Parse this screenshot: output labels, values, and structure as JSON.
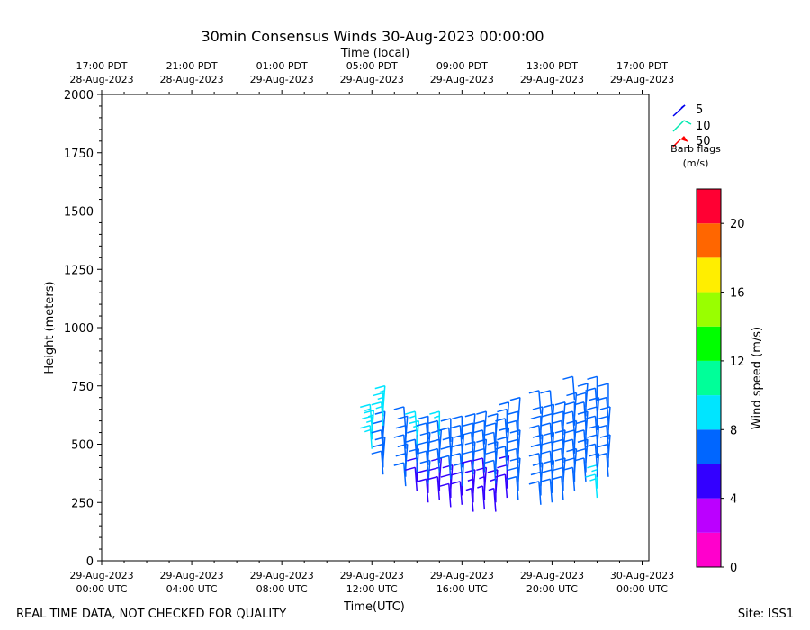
{
  "chart_data": {
    "type": "wind-barb",
    "title": "30min Consensus Winds 30-Aug-2023 00:00:00",
    "top_axis_label": "Time (local)",
    "xlabel": "Time(UTC)",
    "ylabel": "Height (meters)",
    "ylim": [
      0,
      2000
    ],
    "yticks": [
      0,
      250,
      500,
      750,
      1000,
      1250,
      1500,
      1750,
      2000
    ],
    "xlim_hours": [
      0,
      24.3
    ],
    "bottom_ticks": [
      {
        "hour": 0,
        "line1": "29-Aug-2023",
        "line2": "00:00 UTC"
      },
      {
        "hour": 4,
        "line1": "29-Aug-2023",
        "line2": "04:00 UTC"
      },
      {
        "hour": 8,
        "line1": "29-Aug-2023",
        "line2": "08:00 UTC"
      },
      {
        "hour": 12,
        "line1": "29-Aug-2023",
        "line2": "12:00 UTC"
      },
      {
        "hour": 16,
        "line1": "29-Aug-2023",
        "line2": "16:00 UTC"
      },
      {
        "hour": 20,
        "line1": "29-Aug-2023",
        "line2": "20:00 UTC"
      },
      {
        "hour": 24,
        "line1": "30-Aug-2023",
        "line2": "00:00 UTC"
      }
    ],
    "top_ticks": [
      {
        "hour": 0,
        "line1": "17:00 PDT",
        "line2": "28-Aug-2023"
      },
      {
        "hour": 4,
        "line1": "21:00 PDT",
        "line2": "28-Aug-2023"
      },
      {
        "hour": 8,
        "line1": "01:00 PDT",
        "line2": "29-Aug-2023"
      },
      {
        "hour": 12,
        "line1": "05:00 PDT",
        "line2": "29-Aug-2023"
      },
      {
        "hour": 16,
        "line1": "09:00 PDT",
        "line2": "29-Aug-2023"
      },
      {
        "hour": 20,
        "line1": "13:00 PDT",
        "line2": "29-Aug-2023"
      },
      {
        "hour": 24,
        "line1": "17:00 PDT",
        "line2": "29-Aug-2023"
      }
    ],
    "legend": {
      "items": [
        {
          "label": "5",
          "color": "#0000ee"
        },
        {
          "label": "10",
          "color": "#00e8b0"
        },
        {
          "label": "50",
          "color": "#ff0000"
        }
      ],
      "caption_line1": "Barb flags",
      "caption_line2": "(m/s)"
    },
    "colorbar": {
      "label": "Wind speed (m/s)",
      "range": [
        0,
        22
      ],
      "ticks": [
        0,
        4,
        8,
        12,
        16,
        20
      ],
      "bins": [
        {
          "from": 0,
          "to": 2,
          "color": "#ff00cc"
        },
        {
          "from": 2,
          "to": 4,
          "color": "#bb00ff"
        },
        {
          "from": 4,
          "to": 6,
          "color": "#3300ff"
        },
        {
          "from": 6,
          "to": 8,
          "color": "#0066ff"
        },
        {
          "from": 8,
          "to": 10,
          "color": "#00e5ff"
        },
        {
          "from": 10,
          "to": 12,
          "color": "#00ff99"
        },
        {
          "from": 12,
          "to": 14,
          "color": "#00ff00"
        },
        {
          "from": 14,
          "to": 16,
          "color": "#99ff00"
        },
        {
          "from": 16,
          "to": 18,
          "color": "#ffee00"
        },
        {
          "from": 18,
          "to": 20,
          "color": "#ff6600"
        },
        {
          "from": 20,
          "to": 22,
          "color": "#ff0033"
        }
      ]
    },
    "profiles": [
      {
        "hour": 12.0,
        "levels": [
          [
            480,
            9
          ],
          [
            520,
            9
          ],
          [
            545,
            9
          ],
          [
            570,
            9
          ]
        ]
      },
      {
        "hour": 12.5,
        "levels": [
          [
            370,
            7
          ],
          [
            400,
            7
          ],
          [
            430,
            7
          ],
          [
            460,
            7
          ],
          [
            500,
            7
          ],
          [
            540,
            7
          ],
          [
            580,
            9
          ],
          [
            620,
            9
          ],
          [
            650,
            9
          ]
        ]
      },
      {
        "hour": 13.5,
        "levels": [
          [
            320,
            6
          ],
          [
            360,
            6
          ],
          [
            400,
            7
          ],
          [
            440,
            7
          ],
          [
            480,
            7
          ],
          [
            520,
            7
          ],
          [
            560,
            7
          ]
        ]
      },
      {
        "hour": 14.0,
        "levels": [
          [
            300,
            5
          ],
          [
            340,
            5
          ],
          [
            380,
            6
          ],
          [
            420,
            7
          ],
          [
            460,
            7
          ],
          [
            500,
            9
          ],
          [
            540,
            9
          ]
        ]
      },
      {
        "hour": 14.5,
        "levels": [
          [
            250,
            5
          ],
          [
            290,
            5
          ],
          [
            330,
            6
          ],
          [
            370,
            6
          ],
          [
            410,
            7
          ],
          [
            450,
            7
          ],
          [
            490,
            7
          ],
          [
            520,
            7
          ]
        ]
      },
      {
        "hour": 15.0,
        "levels": [
          [
            260,
            5
          ],
          [
            300,
            5
          ],
          [
            340,
            5
          ],
          [
            380,
            7
          ],
          [
            420,
            7
          ],
          [
            460,
            7
          ],
          [
            500,
            7
          ],
          [
            540,
            9
          ]
        ]
      },
      {
        "hour": 15.5,
        "levels": [
          [
            230,
            5
          ],
          [
            270,
            5
          ],
          [
            310,
            5
          ],
          [
            350,
            6
          ],
          [
            390,
            7
          ],
          [
            430,
            7
          ],
          [
            470,
            7
          ],
          [
            510,
            7
          ]
        ]
      },
      {
        "hour": 16.0,
        "levels": [
          [
            240,
            5
          ],
          [
            280,
            5
          ],
          [
            320,
            6
          ],
          [
            360,
            7
          ],
          [
            400,
            7
          ],
          [
            440,
            7
          ],
          [
            480,
            7
          ],
          [
            520,
            7
          ]
        ]
      },
      {
        "hour": 16.5,
        "levels": [
          [
            210,
            4
          ],
          [
            250,
            4
          ],
          [
            290,
            5
          ],
          [
            330,
            5
          ],
          [
            370,
            6
          ],
          [
            410,
            7
          ],
          [
            450,
            7
          ],
          [
            490,
            7
          ],
          [
            530,
            7
          ]
        ]
      },
      {
        "hour": 17.0,
        "levels": [
          [
            220,
            4
          ],
          [
            260,
            4
          ],
          [
            300,
            5
          ],
          [
            340,
            5
          ],
          [
            380,
            6
          ],
          [
            420,
            7
          ],
          [
            460,
            7
          ],
          [
            500,
            7
          ],
          [
            540,
            7
          ]
        ]
      },
      {
        "hour": 17.5,
        "levels": [
          [
            210,
            4
          ],
          [
            250,
            4
          ],
          [
            290,
            5
          ],
          [
            330,
            6
          ],
          [
            370,
            7
          ],
          [
            410,
            7
          ],
          [
            450,
            7
          ],
          [
            490,
            7
          ],
          [
            530,
            7
          ]
        ]
      },
      {
        "hour": 18.0,
        "levels": [
          [
            270,
            5
          ],
          [
            310,
            5
          ],
          [
            350,
            5
          ],
          [
            390,
            6
          ],
          [
            430,
            6
          ],
          [
            470,
            6
          ],
          [
            510,
            6
          ],
          [
            550,
            6
          ],
          [
            580,
            6
          ]
        ]
      },
      {
        "hour": 18.5,
        "levels": [
          [
            260,
            7
          ],
          [
            300,
            7
          ],
          [
            340,
            7
          ],
          [
            380,
            7
          ],
          [
            420,
            7
          ],
          [
            460,
            7
          ],
          [
            500,
            7
          ],
          [
            540,
            7
          ],
          [
            600,
            7
          ]
        ]
      },
      {
        "hour": 19.5,
        "levels": [
          [
            240,
            7
          ],
          [
            280,
            7
          ],
          [
            320,
            7
          ],
          [
            360,
            7
          ],
          [
            400,
            7
          ],
          [
            440,
            7
          ],
          [
            480,
            7
          ],
          [
            520,
            7
          ],
          [
            560,
            7
          ],
          [
            630,
            7
          ]
        ]
      },
      {
        "hour": 20.0,
        "levels": [
          [
            250,
            7
          ],
          [
            290,
            7
          ],
          [
            330,
            7
          ],
          [
            370,
            7
          ],
          [
            410,
            7
          ],
          [
            450,
            7
          ],
          [
            490,
            7
          ],
          [
            530,
            7
          ],
          [
            570,
            7
          ],
          [
            630,
            7
          ]
        ]
      },
      {
        "hour": 20.5,
        "levels": [
          [
            260,
            7
          ],
          [
            300,
            7
          ],
          [
            340,
            7
          ],
          [
            380,
            7
          ],
          [
            420,
            7
          ],
          [
            460,
            7
          ],
          [
            500,
            7
          ],
          [
            540,
            7
          ],
          [
            580,
            7
          ]
        ]
      },
      {
        "hour": 21.0,
        "levels": [
          [
            300,
            7
          ],
          [
            340,
            7
          ],
          [
            380,
            7
          ],
          [
            420,
            7
          ],
          [
            460,
            7
          ],
          [
            500,
            7
          ],
          [
            540,
            7
          ],
          [
            580,
            7
          ],
          [
            620,
            7
          ],
          [
            690,
            7
          ]
        ]
      },
      {
        "hour": 21.5,
        "levels": [
          [
            340,
            7
          ],
          [
            380,
            7
          ],
          [
            420,
            7
          ],
          [
            460,
            7
          ],
          [
            500,
            7
          ],
          [
            540,
            7
          ],
          [
            580,
            7
          ],
          [
            620,
            7
          ],
          [
            660,
            7
          ]
        ]
      },
      {
        "hour": 22.0,
        "levels": [
          [
            270,
            9
          ],
          [
            310,
            9
          ],
          [
            360,
            7
          ],
          [
            400,
            7
          ],
          [
            440,
            7
          ],
          [
            480,
            7
          ],
          [
            520,
            7
          ],
          [
            560,
            7
          ],
          [
            600,
            7
          ],
          [
            640,
            7
          ],
          [
            690,
            7
          ]
        ]
      },
      {
        "hour": 22.5,
        "levels": [
          [
            360,
            7
          ],
          [
            400,
            7
          ],
          [
            440,
            7
          ],
          [
            480,
            7
          ],
          [
            520,
            7
          ],
          [
            560,
            7
          ],
          [
            600,
            7
          ],
          [
            660,
            7
          ]
        ]
      }
    ]
  },
  "footer": {
    "left_note": "REAL TIME DATA, NOT CHECKED FOR QUALITY",
    "site": "Site: ISS1"
  }
}
